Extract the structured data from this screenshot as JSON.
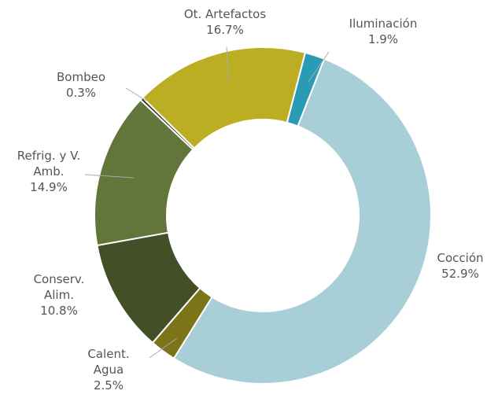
{
  "chart_data": {
    "type": "donut",
    "categories": [
      "Iluminación",
      "Cocción",
      "Calent. Agua",
      "Conserv. Alim.",
      "Refrig. y V. Amb.",
      "Bombeo",
      "Ot. Artefactos"
    ],
    "values": [
      1.9,
      52.9,
      2.5,
      10.8,
      14.9,
      0.3,
      16.7
    ],
    "value_labels": [
      "1.9%",
      "52.9%",
      "2.5%",
      "10.8%",
      "14.9%",
      "0.3%",
      "16.7%"
    ],
    "colors": [
      "#2a9bb5",
      "#a8cfd8",
      "#7b7419",
      "#434f26",
      "#62753a",
      "#2c3324",
      "#bcae22"
    ]
  }
}
